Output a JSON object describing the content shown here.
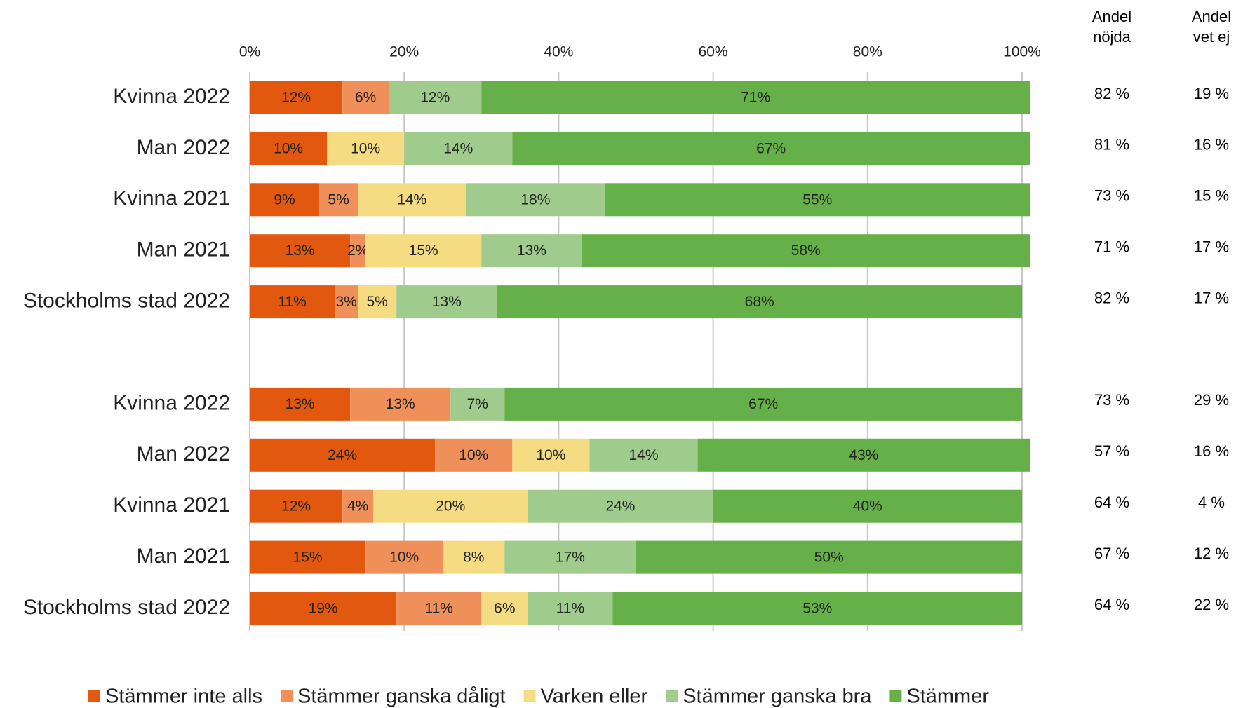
{
  "chart_data": {
    "type": "stacked_bar_horizontal",
    "categories": [
      "Kvinna 2022",
      "Man 2022",
      "Kvinna 2021",
      "Man 2021",
      "Stockholms stad 2022",
      null,
      "Kvinna 2022",
      "Man 2022",
      "Kvinna 2021",
      "Man 2021",
      "Stockholms stad 2022"
    ],
    "series": [
      {
        "name": "Stämmer inte alls",
        "color": "#e2580f",
        "values": [
          12,
          10,
          9,
          13,
          11,
          null,
          13,
          24,
          12,
          15,
          19
        ],
        "value_labels": [
          "12%",
          "10%",
          "9%",
          "13%",
          "11%",
          null,
          "13%",
          "24%",
          "12%",
          "15%",
          "19%"
        ]
      },
      {
        "name": "Stämmer ganska dåligt",
        "color": "#ef8f5a",
        "values": [
          6,
          null,
          5,
          2,
          3,
          null,
          13,
          10,
          4,
          10,
          11
        ],
        "value_labels": [
          "6%",
          null,
          "5%",
          "2%",
          "3%",
          null,
          "13%",
          "10%",
          "4%",
          "10%",
          "11%"
        ]
      },
      {
        "name": "Varken eller",
        "color": "#f5dc82",
        "values": [
          null,
          10,
          14,
          15,
          5,
          null,
          null,
          10,
          20,
          8,
          6
        ],
        "value_labels": [
          null,
          "10%",
          "14%",
          "15%",
          "5%",
          null,
          null,
          "10%",
          "20%",
          "8%",
          "6%"
        ]
      },
      {
        "name": "Stämmer ganska bra",
        "color": "#9fcb8c",
        "values": [
          12,
          14,
          18,
          13,
          13,
          null,
          7,
          14,
          24,
          17,
          11
        ],
        "value_labels": [
          "12%",
          "14%",
          "18%",
          "13%",
          "13%",
          null,
          "7%",
          "14%",
          "24%",
          "17%",
          "11%"
        ]
      },
      {
        "name": "Stämmer",
        "color": "#66b04a",
        "values": [
          71,
          67,
          55,
          58,
          68,
          null,
          67,
          43,
          40,
          50,
          53
        ],
        "value_labels": [
          "71%",
          "67%",
          "55%",
          "58%",
          "68%",
          null,
          "67%",
          "43%",
          "40%",
          "50%",
          "53%"
        ]
      }
    ],
    "xlim": [
      0,
      100
    ],
    "xticks": [
      {
        "value": 0,
        "label": "0%"
      },
      {
        "value": 20,
        "label": "20%"
      },
      {
        "value": 40,
        "label": "40%"
      },
      {
        "value": 60,
        "label": "60%"
      },
      {
        "value": 80,
        "label": "80%"
      },
      {
        "value": 100,
        "label": "100%"
      }
    ],
    "grid": true,
    "legend": "bottom",
    "side_columns": [
      {
        "header": [
          "Andel",
          "nöjda"
        ],
        "values": [
          "82 %",
          "81 %",
          "73 %",
          "71 %",
          "82 %",
          null,
          "73 %",
          "57 %",
          "64 %",
          "67 %",
          "64 %"
        ]
      },
      {
        "header": [
          "Andel",
          "vet ej"
        ],
        "values": [
          "19 %",
          "16 %",
          "15 %",
          "17 %",
          "17 %",
          null,
          "29 %",
          "16 %",
          "4 %",
          "12 %",
          "22 %"
        ]
      }
    ]
  }
}
